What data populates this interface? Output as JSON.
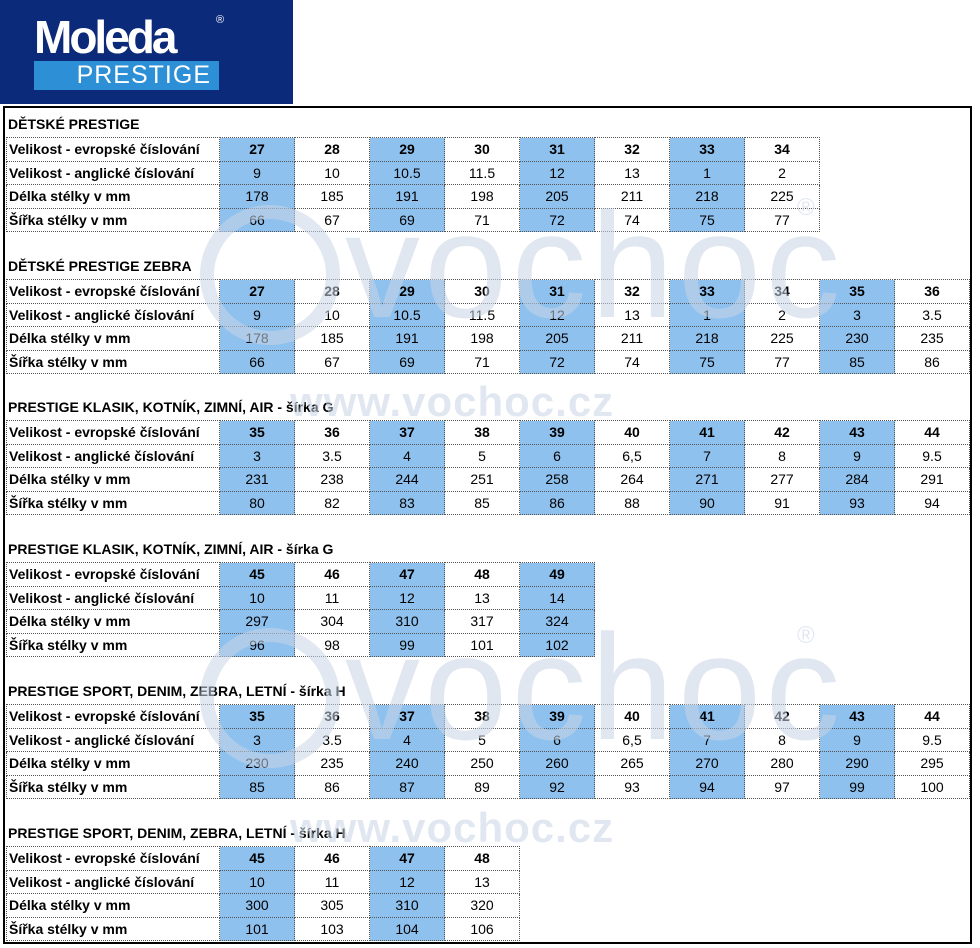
{
  "logo": {
    "brand": "Moleda",
    "reg": "®",
    "sub": "PRESTIGE"
  },
  "watermark": {
    "big": "vochoc",
    "url": "www.vochoc.cz",
    "reg": "®"
  },
  "colors": {
    "logo_bg": "#0b2a7a",
    "logo_band": "#2d8fd5",
    "cell_blue": "#8ec1ee"
  },
  "sections": [
    {
      "title": "DĚTSKÉ PRESTIGE",
      "rows": [
        {
          "label": "Velikost - evropské číslování",
          "values": [
            "27",
            "28",
            "29",
            "30",
            "31",
            "32",
            "33",
            "34"
          ]
        },
        {
          "label": "Velikost - anglické číslování",
          "values": [
            "9",
            "10",
            "10.5",
            "11.5",
            "12",
            "13",
            "1",
            "2"
          ]
        },
        {
          "label": "Délka stélky v mm",
          "values": [
            "178",
            "185",
            "191",
            "198",
            "205",
            "211",
            "218",
            "225"
          ]
        },
        {
          "label": "Šířka stélky v mm",
          "values": [
            "66",
            "67",
            "69",
            "71",
            "72",
            "74",
            "75",
            "77"
          ]
        }
      ]
    },
    {
      "title": "DĚTSKÉ PRESTIGE ZEBRA",
      "rows": [
        {
          "label": "Velikost - evropské číslování",
          "values": [
            "27",
            "28",
            "29",
            "30",
            "31",
            "32",
            "33",
            "34",
            "35",
            "36"
          ]
        },
        {
          "label": "Velikost - anglické číslování",
          "values": [
            "9",
            "10",
            "10.5",
            "11.5",
            "12",
            "13",
            "1",
            "2",
            "3",
            "3.5"
          ]
        },
        {
          "label": "Délka stélky v mm",
          "values": [
            "178",
            "185",
            "191",
            "198",
            "205",
            "211",
            "218",
            "225",
            "230",
            "235"
          ]
        },
        {
          "label": "Šířka stélky v mm",
          "values": [
            "66",
            "67",
            "69",
            "71",
            "72",
            "74",
            "75",
            "77",
            "85",
            "86"
          ]
        }
      ]
    },
    {
      "title": "PRESTIGE KLASIK, KOTNÍK, ZIMNÍ, AIR - šírka G",
      "rows": [
        {
          "label": "Velikost - evropské číslování",
          "values": [
            "35",
            "36",
            "37",
            "38",
            "39",
            "40",
            "41",
            "42",
            "43",
            "44"
          ]
        },
        {
          "label": "Velikost - anglické číslování",
          "values": [
            "3",
            "3.5",
            "4",
            "5",
            "6",
            "6,5",
            "7",
            "8",
            "9",
            "9.5"
          ]
        },
        {
          "label": "Délka stélky v mm",
          "values": [
            "231",
            "238",
            "244",
            "251",
            "258",
            "264",
            "271",
            "277",
            "284",
            "291"
          ]
        },
        {
          "label": "Šířka stélky v mm",
          "values": [
            "80",
            "82",
            "83",
            "85",
            "86",
            "88",
            "90",
            "91",
            "93",
            "94"
          ]
        }
      ]
    },
    {
      "title": "PRESTIGE KLASIK, KOTNÍK, ZIMNÍ, AIR - šírka G",
      "rows": [
        {
          "label": "Velikost - evropské číslování",
          "values": [
            "45",
            "46",
            "47",
            "48",
            "49"
          ]
        },
        {
          "label": "Velikost - anglické číslování",
          "values": [
            "10",
            "11",
            "12",
            "13",
            "14"
          ]
        },
        {
          "label": "Délka stélky v mm",
          "values": [
            "297",
            "304",
            "310",
            "317",
            "324"
          ]
        },
        {
          "label": "Šířka stélky v mm",
          "values": [
            "96",
            "98",
            "99",
            "101",
            "102"
          ]
        }
      ]
    },
    {
      "title": "PRESTIGE SPORT, DENIM, ZEBRA, LETNÍ - šírka H",
      "rows": [
        {
          "label": "Velikost - evropské číslování",
          "values": [
            "35",
            "36",
            "37",
            "38",
            "39",
            "40",
            "41",
            "42",
            "43",
            "44"
          ]
        },
        {
          "label": "Velikost - anglické číslování",
          "values": [
            "3",
            "3.5",
            "4",
            "5",
            "6",
            "6,5",
            "7",
            "8",
            "9",
            "9.5"
          ]
        },
        {
          "label": "Délka stélky v mm",
          "values": [
            "230",
            "235",
            "240",
            "250",
            "260",
            "265",
            "270",
            "280",
            "290",
            "295"
          ]
        },
        {
          "label": "Šířka stélky v mm",
          "values": [
            "85",
            "86",
            "87",
            "89",
            "92",
            "93",
            "94",
            "97",
            "99",
            "100"
          ]
        }
      ]
    },
    {
      "title": "PRESTIGE SPORT, DENIM, ZEBRA, LETNÍ - šírka H",
      "rows": [
        {
          "label": "Velikost - evropské číslování",
          "values": [
            "45",
            "46",
            "47",
            "48"
          ]
        },
        {
          "label": "Velikost - anglické číslování",
          "values": [
            "10",
            "11",
            "12",
            "13"
          ]
        },
        {
          "label": "Délka stélky v mm",
          "values": [
            "300",
            "305",
            "310",
            "320"
          ]
        },
        {
          "label": "Šířka stélky v mm",
          "values": [
            "101",
            "103",
            "104",
            "106"
          ]
        }
      ]
    }
  ]
}
